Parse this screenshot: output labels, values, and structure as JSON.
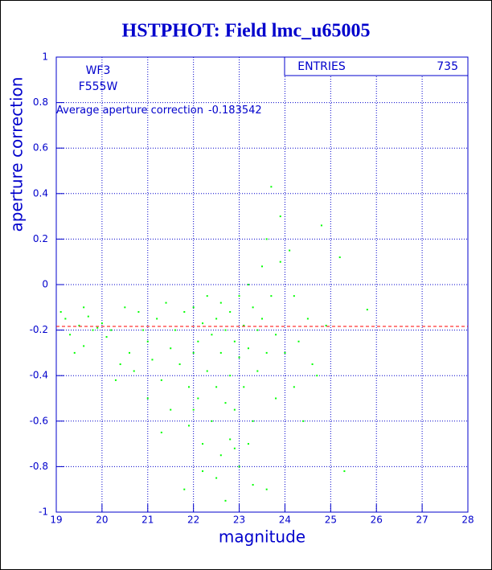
{
  "chart_data": {
    "type": "scatter",
    "title": "HSTPHOT: Field lmc_u65005",
    "x_label": "magnitude",
    "y_label": "aperture correction",
    "annotations": [
      "WF3",
      "F555W"
    ],
    "average_label": "Average aperture correction",
    "average_value": -0.183542,
    "average_color": "#ff0000",
    "stats": {
      "label": "ENTRIES",
      "value": 735
    },
    "color": "#00ff00",
    "grid": true,
    "xlim": [
      19,
      28
    ],
    "ylim": [
      -1,
      1
    ],
    "xticks": [
      19,
      20,
      21,
      22,
      23,
      24,
      25,
      26,
      27,
      28
    ],
    "yticks": [
      -1,
      -0.8,
      -0.6,
      -0.4,
      -0.2,
      0,
      0.2,
      0.4,
      0.6,
      0.8,
      1
    ],
    "x": [
      19.1,
      19.2,
      19.3,
      19.4,
      19.5,
      19.6,
      19.7,
      19.8,
      19.9,
      20.0,
      20.1,
      20.3,
      20.4,
      20.5,
      20.6,
      20.7,
      20.8,
      20.9,
      21.0,
      21.0,
      21.1,
      21.2,
      21.3,
      21.4,
      21.5,
      21.5,
      21.6,
      21.7,
      21.8,
      21.9,
      21.9,
      22.0,
      22.0,
      22.1,
      22.1,
      22.2,
      22.2,
      22.3,
      22.3,
      22.4,
      22.4,
      22.5,
      22.5,
      22.5,
      22.6,
      22.6,
      22.6,
      22.7,
      22.7,
      22.7,
      22.8,
      22.8,
      22.8,
      22.9,
      22.9,
      23.0,
      23.0,
      23.0,
      23.1,
      23.1,
      23.2,
      23.2,
      23.3,
      23.3,
      23.4,
      23.4,
      23.5,
      23.5,
      23.6,
      23.6,
      23.7,
      23.7,
      23.8,
      23.8,
      23.9,
      24.0,
      24.1,
      24.2,
      24.3,
      24.4,
      24.5,
      24.6,
      24.8,
      24.9,
      25.2,
      25.3,
      25.8,
      21.8,
      22.2,
      23.3,
      22.9,
      20.2,
      19.6,
      21.3,
      22.0,
      23.6,
      23.9,
      24.2,
      24.7,
      23.2
    ],
    "y": [
      -0.12,
      -0.15,
      -0.22,
      -0.3,
      -0.18,
      -0.27,
      -0.14,
      -0.2,
      -0.19,
      -0.17,
      -0.23,
      -0.42,
      -0.35,
      -0.1,
      -0.3,
      -0.38,
      -0.12,
      -0.2,
      -0.25,
      -0.5,
      -0.33,
      -0.15,
      -0.42,
      -0.08,
      -0.28,
      -0.55,
      -0.2,
      -0.35,
      -0.12,
      -0.45,
      -0.62,
      -0.1,
      -0.3,
      -0.25,
      -0.5,
      -0.17,
      -0.7,
      -0.05,
      -0.38,
      -0.22,
      -0.6,
      -0.15,
      -0.45,
      -0.85,
      -0.08,
      -0.3,
      -0.75,
      -0.2,
      -0.52,
      -0.95,
      -0.12,
      -0.4,
      -0.68,
      -0.25,
      -0.55,
      -0.05,
      -0.32,
      -0.8,
      -0.18,
      -0.45,
      0.0,
      -0.28,
      -0.1,
      -0.6,
      -0.2,
      -0.38,
      0.08,
      -0.15,
      -0.3,
      -0.9,
      0.43,
      -0.05,
      -0.22,
      -0.5,
      0.1,
      -0.3,
      0.15,
      -0.45,
      -0.25,
      -0.6,
      -0.15,
      -0.35,
      0.26,
      -0.18,
      0.12,
      -0.82,
      -0.11,
      -0.9,
      -0.82,
      -0.88,
      -0.72,
      -0.2,
      -0.1,
      -0.65,
      -0.55,
      0.2,
      0.3,
      -0.05,
      -0.4,
      -0.7
    ]
  }
}
